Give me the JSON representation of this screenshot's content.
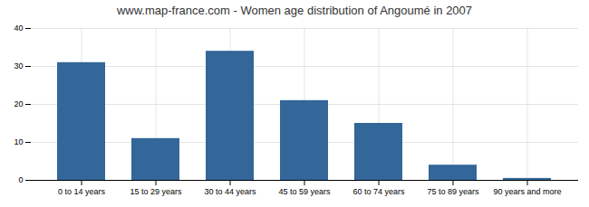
{
  "chart_data": {
    "type": "bar",
    "title": "www.map-france.com - Women age distribution of Angoumé in 2007",
    "categories": [
      "0 to 14 years",
      "15 to 29 years",
      "30 to 44 years",
      "45 to 59 years",
      "60 to 74 years",
      "75 to 89 years",
      "90 years and more"
    ],
    "values": [
      31,
      11,
      34,
      21,
      15,
      4,
      0.5
    ],
    "color": "#336699",
    "ylim": [
      0,
      40
    ],
    "yticks": [
      0,
      10,
      20,
      30,
      40
    ],
    "grid": true
  }
}
